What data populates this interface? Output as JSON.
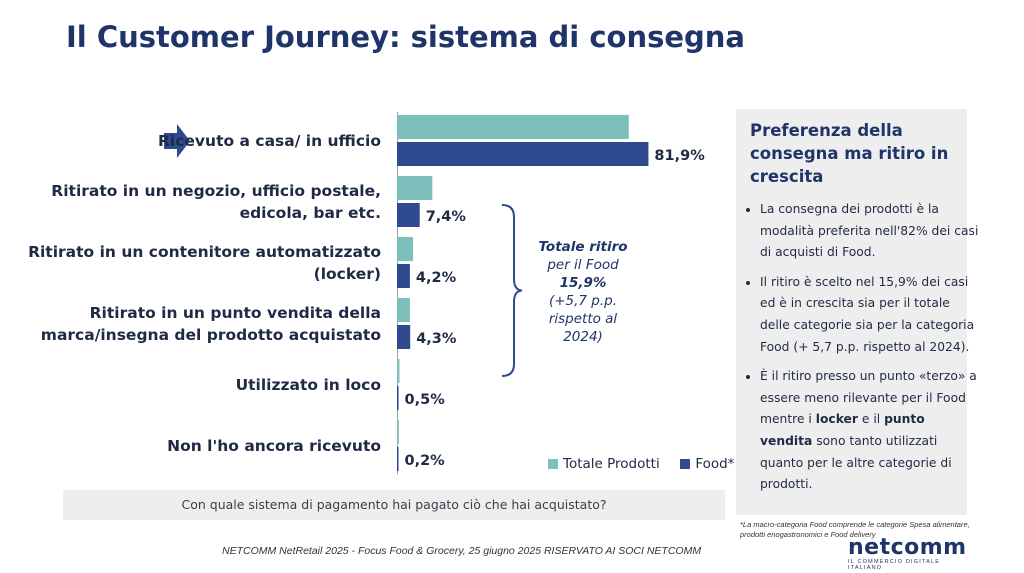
{
  "page": {
    "title": "Il Customer Journey: sistema di consegna",
    "footer": "NETCOMM NetRetail 2025 - Focus Food & Grocery, 25 giugno 2025 RISERVATO AI SOCI NETCOMM",
    "question": "Con quale sistema di pagamento hai pagato ciò che hai acquistato?",
    "footnote": "*La macro-categoria Food comprende le categorie Spesa alimentare, prodotti enogastronomici e Food delivery",
    "logo": {
      "name": "netcomm",
      "tagline": "IL COMMERCIO DIGITALE ITALIANO"
    }
  },
  "annotation": {
    "label": "Totale ritiro",
    "line2": "per il Food",
    "value": "15,9%",
    "line4": "(+5,7 p.p.",
    "line5": "rispetto al",
    "line6": "2024)"
  },
  "panel": {
    "title": "Preferenza della consegna ma ritiro in crescita",
    "bullet1": "La consegna dei prodotti è la modalità preferita nell'82% dei casi di acquisti di Food.",
    "bullet2": "Il ritiro è scelto nel 15,9% dei casi ed è in crescita sia per il totale delle categorie sia per la categoria Food  (+ 5,7 p.p. rispetto al 2024).",
    "bullet3_a": "È il ritiro presso un punto «terzo» a essere meno rilevante per il Food mentre i ",
    "bullet3_b": "locker",
    "bullet3_c": " e il ",
    "bullet3_d": "punto vendita",
    "bullet3_e": " sono tanto utilizzati quanto per le altre categorie di prodotti."
  },
  "colors": {
    "totale": "#7dbfba",
    "food": "#2f4a8f",
    "title": "#1f3468"
  },
  "chart_data": {
    "type": "bar",
    "orientation": "horizontal",
    "categories": [
      "Ricevuto a casa/ in ufficio",
      "Ritirato in un negozio, ufficio postale,\nedicola, bar etc.",
      "Ritirato in un contenitore automatizzato\n(locker)",
      "Ritirato in un punto vendita della\nmarca/insegna del prodotto acquistato",
      "Utilizzato in loco",
      "Non l'ho ancora ricevuto"
    ],
    "series": [
      {
        "name": "Totale Prodotti",
        "values": [
          75.5,
          11.5,
          5.2,
          4.2,
          0.8,
          0.6
        ]
      },
      {
        "name": "Food*",
        "values": [
          81.9,
          7.4,
          4.2,
          4.3,
          0.5,
          0.2
        ]
      }
    ],
    "data_labels": [
      "81,9%",
      "7,4%",
      "4,2%",
      "4,3%",
      "0,5%",
      "0,2%"
    ],
    "xlim": [
      0,
      100
    ],
    "legend": "bottom-right",
    "grid": false
  }
}
